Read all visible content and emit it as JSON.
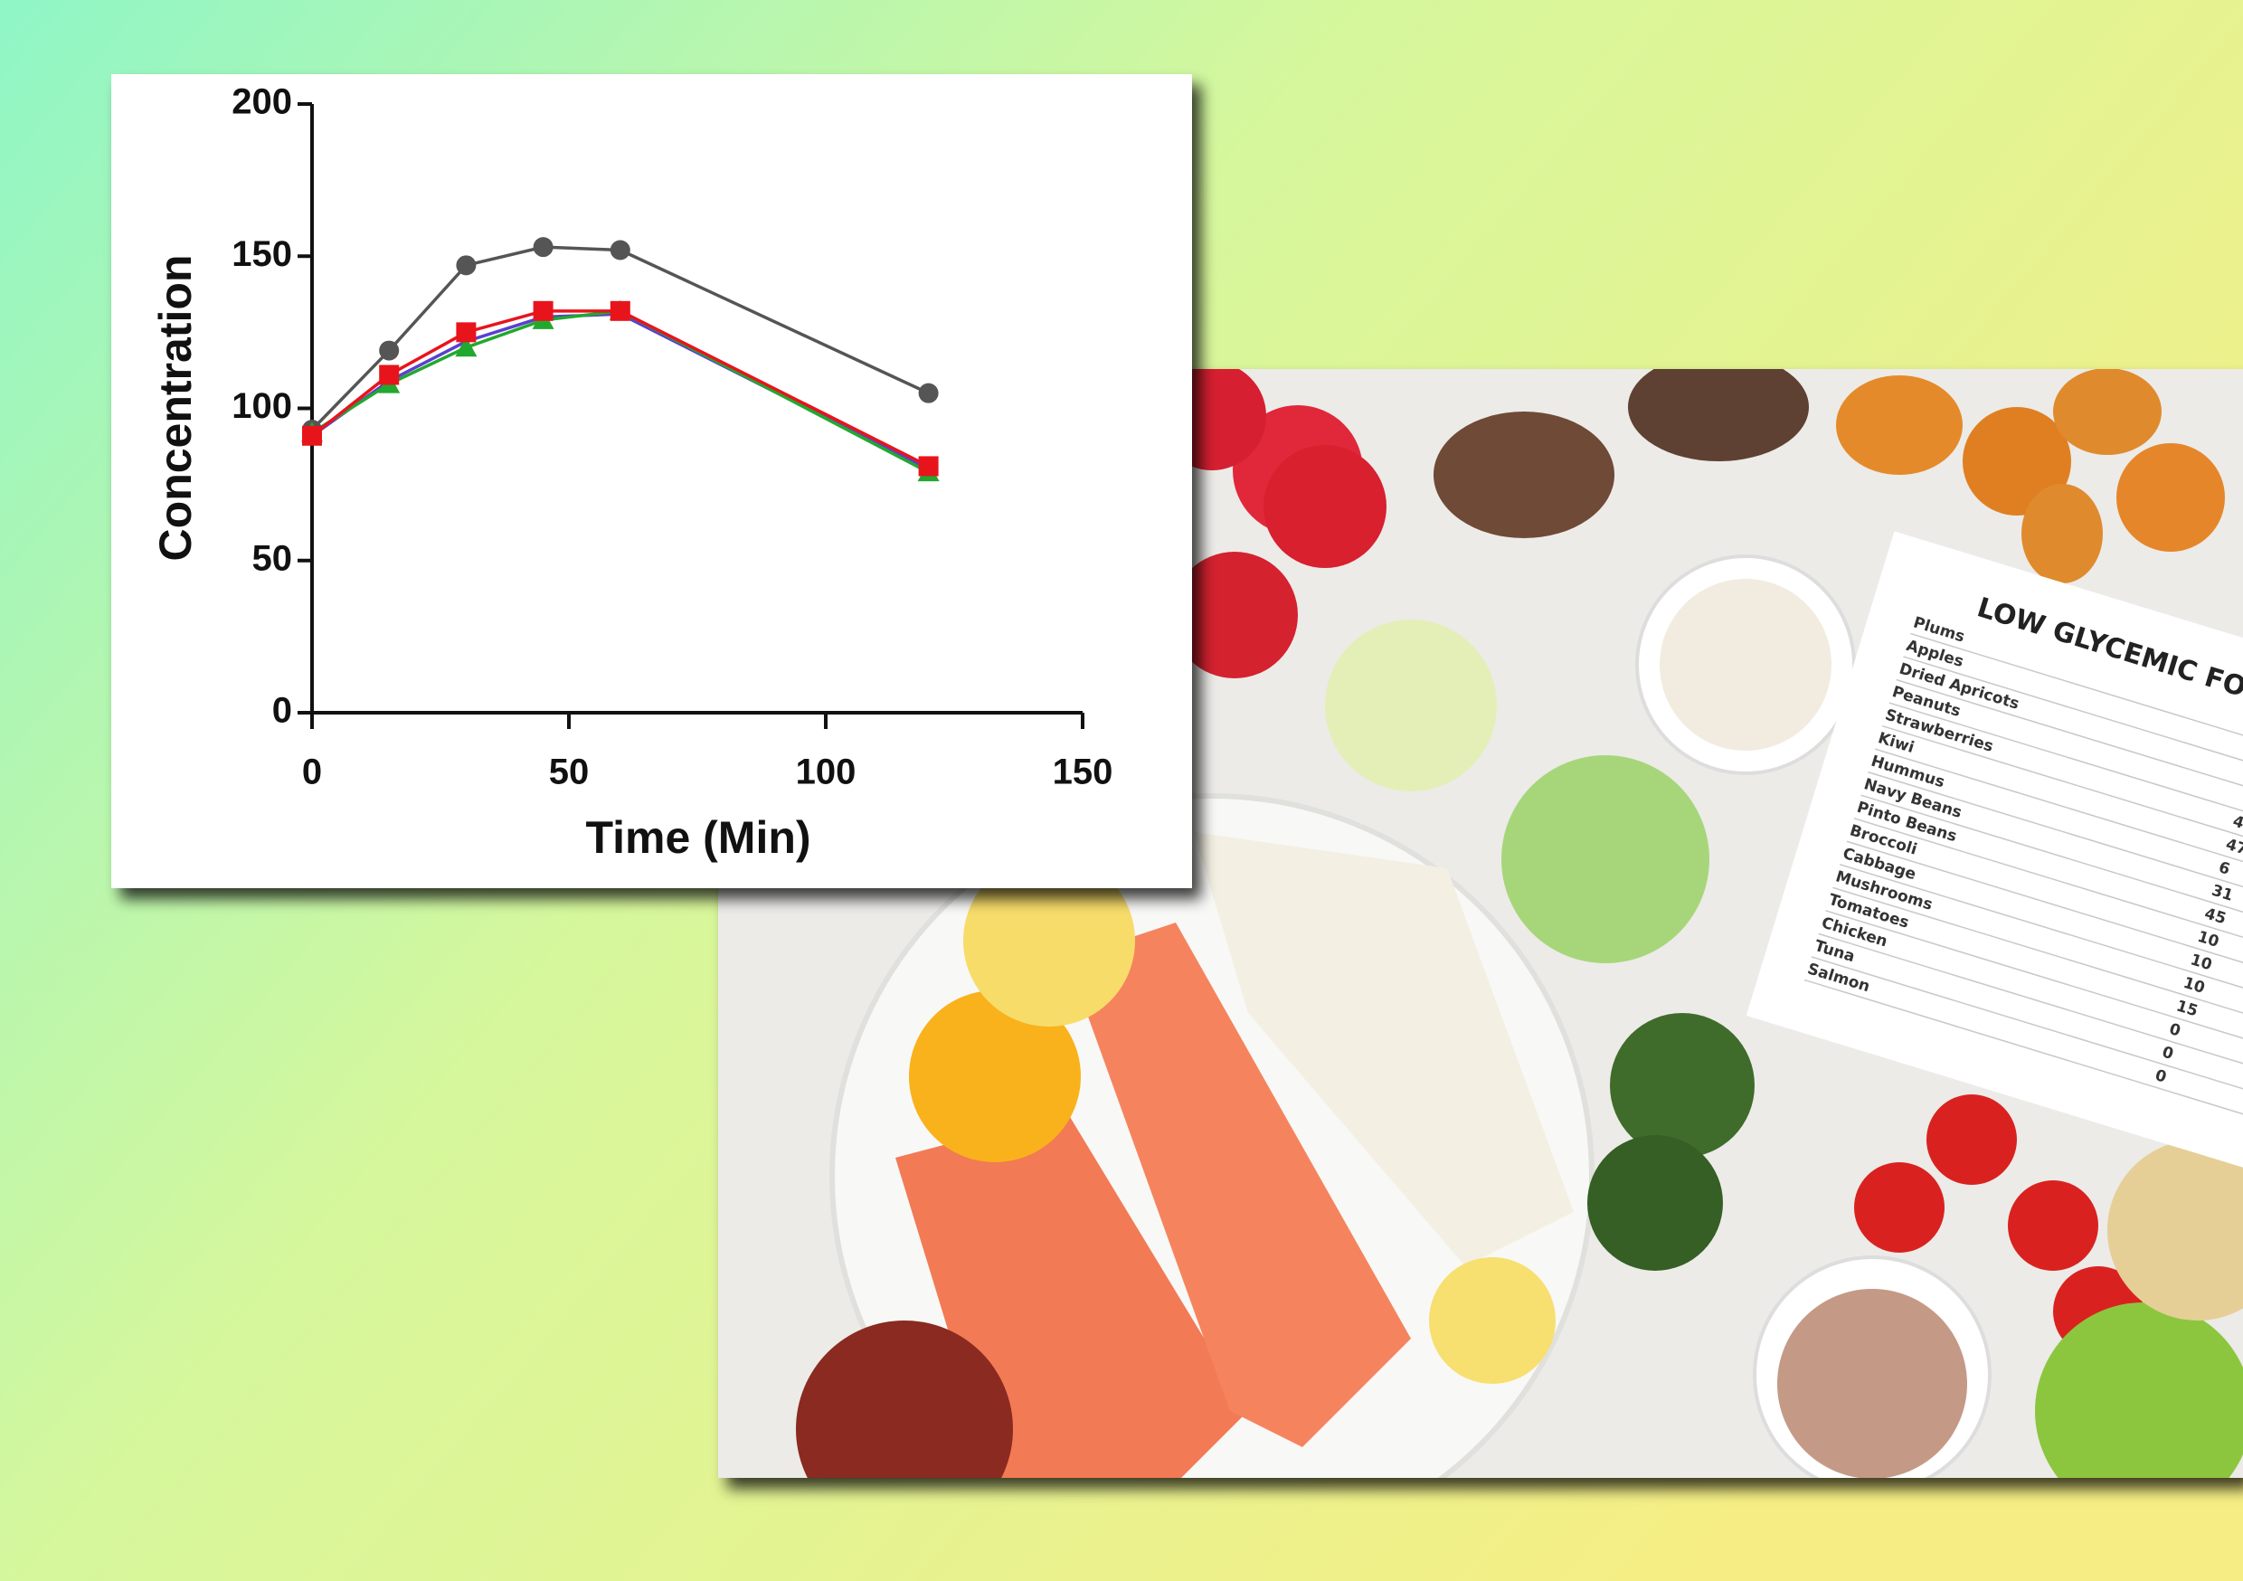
{
  "chart_data": {
    "type": "line",
    "x_label": "Time (Min)",
    "y_label": "Concentration",
    "x": [
      0,
      15,
      30,
      45,
      60,
      120
    ],
    "series": [
      {
        "color": "#555555",
        "marker": "circle",
        "values": [
          93,
          119,
          147,
          153,
          152,
          105
        ]
      },
      {
        "color": "#5b3fd0",
        "marker": "none",
        "values": [
          91,
          109,
          122,
          130,
          131,
          80
        ]
      },
      {
        "color": "#22a82e",
        "marker": "triangle",
        "values": [
          92,
          108,
          120,
          129,
          132,
          79
        ]
      },
      {
        "color": "#e8141c",
        "marker": "square",
        "values": [
          91,
          111,
          125,
          132,
          132,
          81
        ]
      }
    ],
    "xlim": [
      0,
      150
    ],
    "xticks": [
      0,
      50,
      100,
      150
    ],
    "ylim": [
      0,
      200
    ],
    "yticks": [
      0,
      50,
      100,
      150,
      200
    ],
    "grid": false
  },
  "photo_sheet": {
    "title": "LOW GLYCEMIC FO",
    "foods": [
      "Plums",
      "Apples",
      "Dried Apricots",
      "Peanuts",
      "Strawberries",
      "Kiwi",
      "Hummus",
      "Navy Beans",
      "Pinto Beans",
      "Broccoli",
      "Cabbage",
      "Mushrooms",
      "Tomatoes",
      "Chicken",
      "Tuna",
      "Salmon"
    ],
    "numbers": [
      "4",
      "47",
      "6",
      "31",
      "45",
      "10",
      "10",
      "10",
      "15",
      "0",
      "0",
      "0"
    ]
  }
}
